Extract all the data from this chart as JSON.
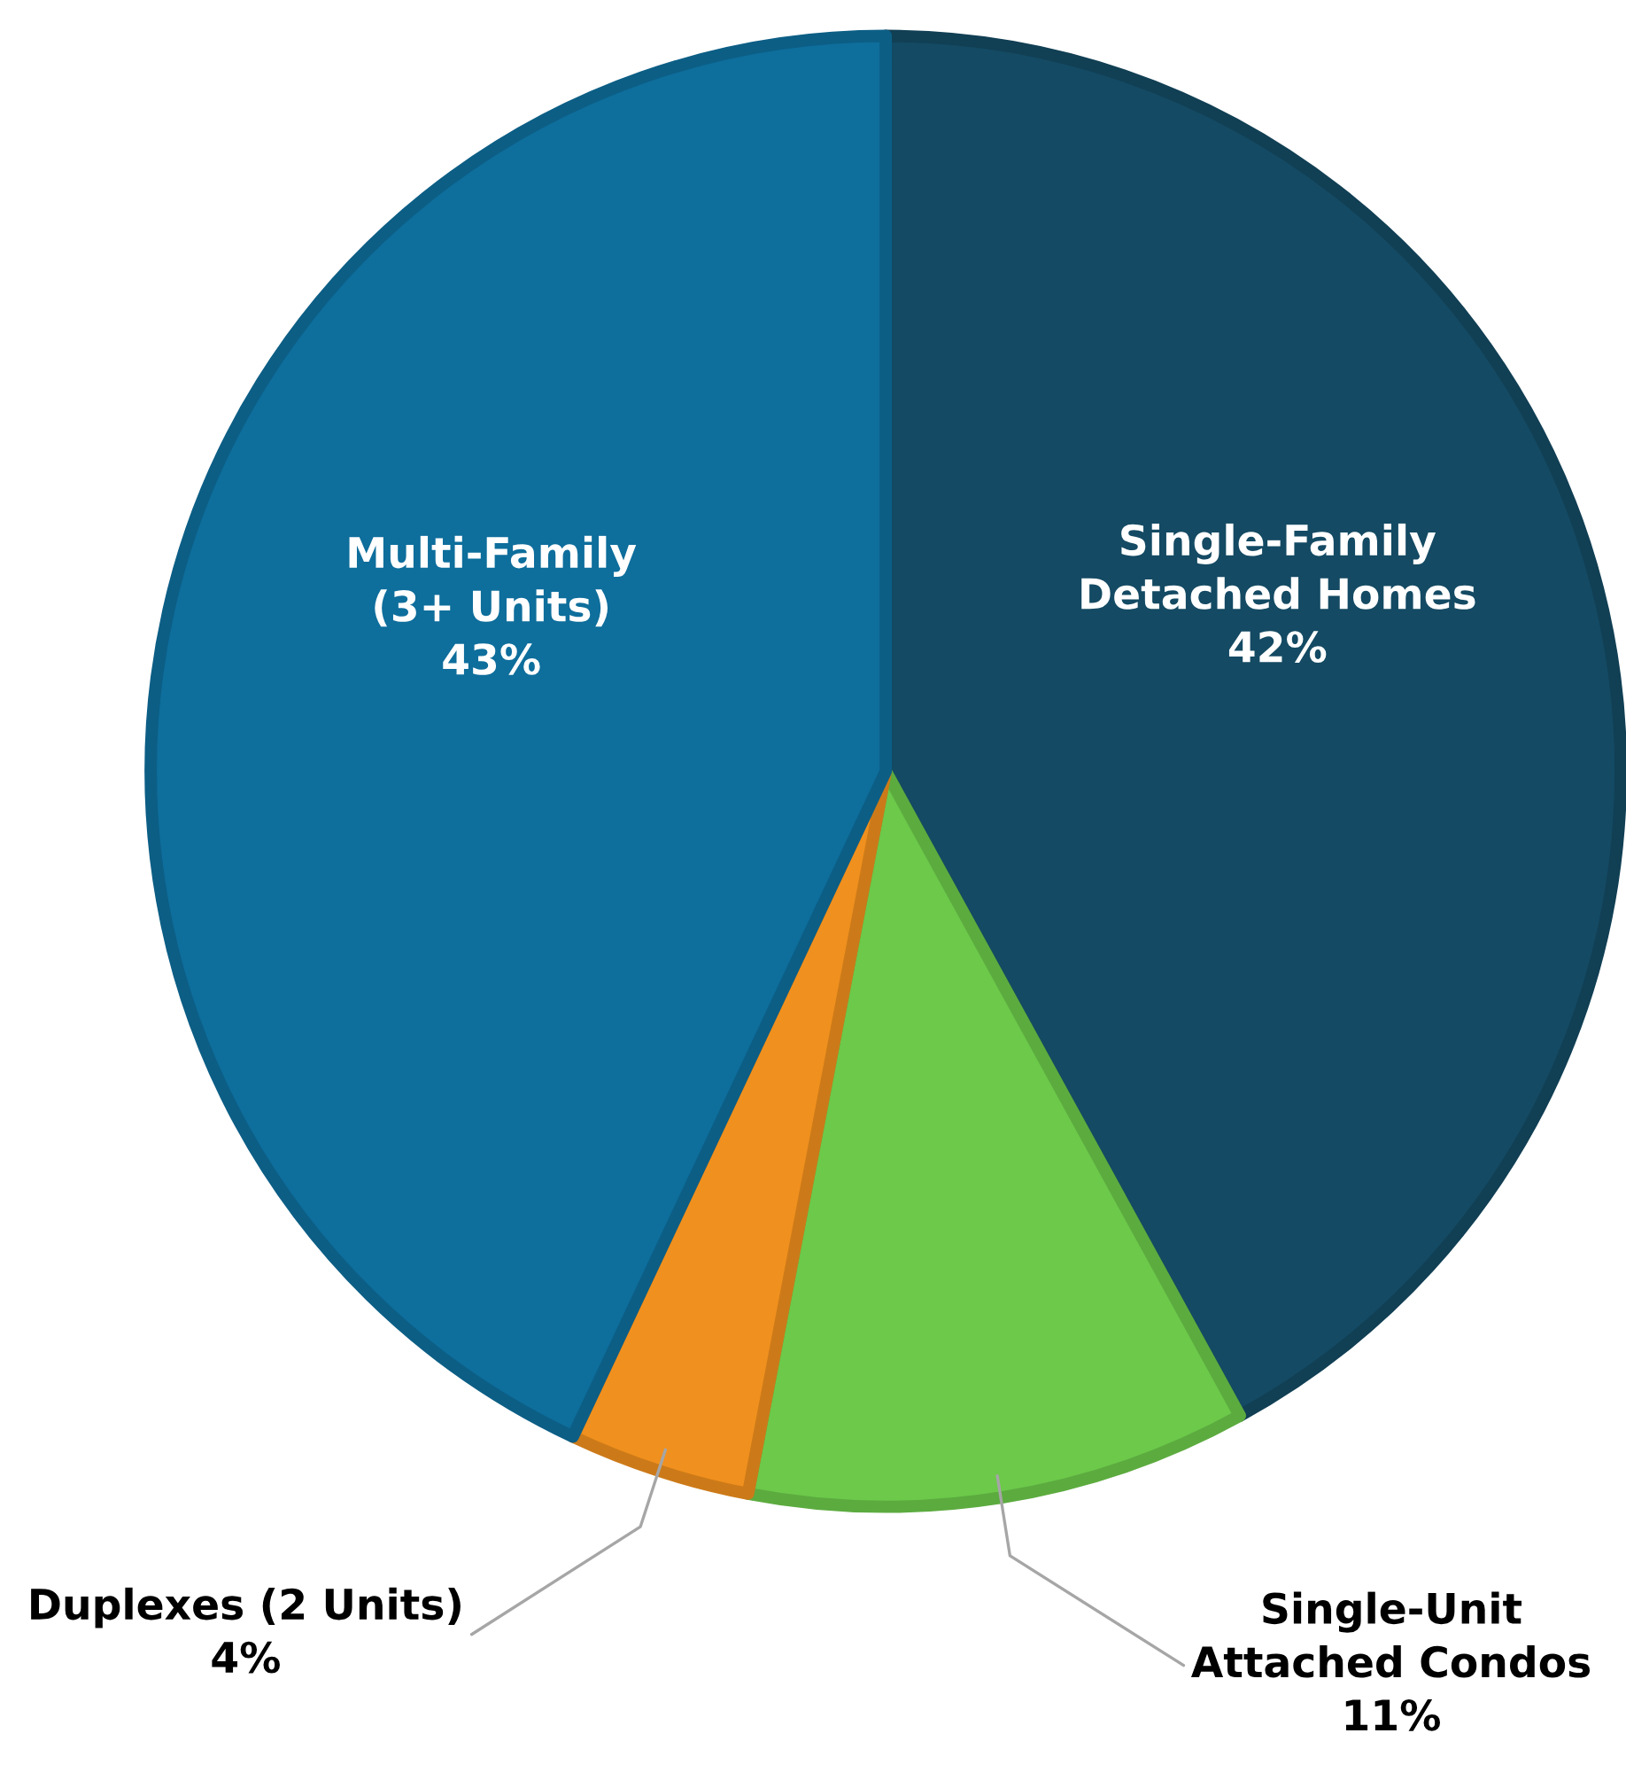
{
  "chart_data": {
    "type": "pie",
    "categories": [
      "Single-Family\nDetached Homes",
      "Single-Unit\nAttached Condos",
      "Duplexes (2 Units)",
      "Multi-Family\n(3+ Units)"
    ],
    "values": [
      42,
      11,
      4,
      43
    ],
    "colors": [
      "#144a63",
      "#6cc94a",
      "#f0901e",
      "#0e6e9c"
    ],
    "value_labels": [
      "42%",
      "11%",
      "4%",
      "43%"
    ]
  }
}
